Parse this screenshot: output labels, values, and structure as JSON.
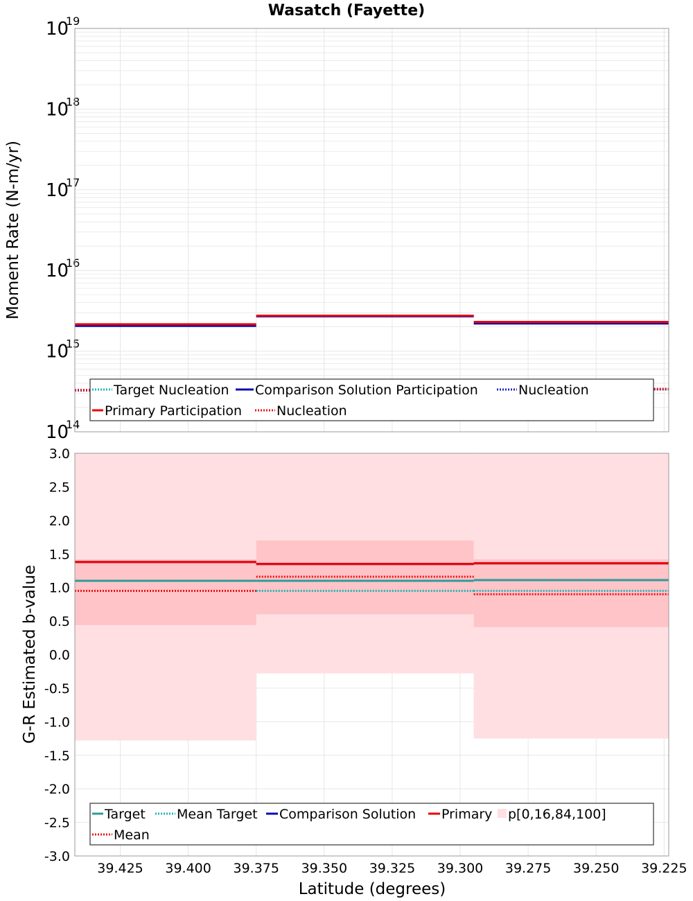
{
  "title": "Wasatch (Fayette)",
  "colors": {
    "teal": "#2a9d99",
    "teal_dotted": "#19b6b6",
    "blue": "#0b0bb0",
    "blue_dotted": "#2020c0",
    "red": "#ee0000",
    "red_dotted": "#ee1111",
    "band_outer": "#ffdfe2",
    "band_inner": "#ffc4c8",
    "grid": "#e6e6e6"
  },
  "chart_data": [
    {
      "type": "line",
      "panel": "top",
      "ylabel": "Moment Rate (N-m/yr)",
      "yscale": "log",
      "ylim": [
        100000000000000.0,
        1e+19
      ],
      "xlim": [
        39.4417,
        39.2233
      ],
      "x_reversed": true,
      "y_ticks": [
        {
          "base": "10",
          "exp": "14",
          "value": 100000000000000.0
        },
        {
          "base": "10",
          "exp": "15",
          "value": 1000000000000000.0
        },
        {
          "base": "10",
          "exp": "16",
          "value": 1e+16
        },
        {
          "base": "10",
          "exp": "17",
          "value": 1e+17
        },
        {
          "base": "10",
          "exp": "18",
          "value": 1e+18
        },
        {
          "base": "10",
          "exp": "19",
          "value": 1e+19
        }
      ],
      "segments": [
        [
          39.4417,
          39.375
        ],
        [
          39.375,
          39.295
        ],
        [
          39.295,
          39.2233
        ]
      ],
      "series": [
        {
          "key": "target_nuc",
          "legend": "Target Nucleation",
          "color": "#19b6b6",
          "style": "dotted",
          "values": [
            330000000000000.0,
            390000000000000.0,
            340000000000000.0
          ]
        },
        {
          "key": "comp_part",
          "legend": "Comparison Solution Participation",
          "color": "#0b0bb0",
          "style": "solid",
          "values": [
            2050000000000000.0,
            2700000000000000.0,
            2200000000000000.0
          ]
        },
        {
          "key": "comp_nuc",
          "legend": "Nucleation",
          "color": "#2020c0",
          "style": "dotted",
          "values": [
            325000000000000.0,
            385000000000000.0,
            335000000000000.0
          ]
        },
        {
          "key": "prim_part",
          "legend": "Primary Participation",
          "color": "#ee0000",
          "style": "solid",
          "values": [
            2150000000000000.0,
            2750000000000000.0,
            2300000000000000.0
          ]
        },
        {
          "key": "prim_nuc",
          "legend": "Nucleation",
          "color": "#ee1111",
          "style": "dotted",
          "values": [
            330000000000000.0,
            395000000000000.0,
            340000000000000.0
          ]
        }
      ],
      "legend_placement": "bottom",
      "grid": true
    },
    {
      "type": "line",
      "panel": "bottom",
      "ylabel": "G-R Estimated b-value",
      "xlabel": "Latitude (degrees)",
      "ylim": [
        -3.0,
        3.0
      ],
      "xlim": [
        39.4417,
        39.2233
      ],
      "x_reversed": true,
      "x_ticks": [
        "39.425",
        "39.400",
        "39.375",
        "39.350",
        "39.325",
        "39.300",
        "39.275",
        "39.250",
        "39.225"
      ],
      "y_ticks": [
        "3.0",
        "2.5",
        "2.0",
        "1.5",
        "1.0",
        "0.5",
        "0.0",
        "-0.5",
        "-1.0",
        "-1.5",
        "-2.0",
        "-2.5",
        "-3.0"
      ],
      "segments": [
        [
          39.4417,
          39.375
        ],
        [
          39.375,
          39.295
        ],
        [
          39.295,
          39.2233
        ]
      ],
      "bands": {
        "p0": [
          -1.28,
          -0.28,
          -1.25
        ],
        "p16": [
          0.44,
          0.6,
          0.41
        ],
        "p84": [
          1.42,
          1.7,
          1.42
        ],
        "p100": [
          3.0,
          3.0,
          3.0
        ]
      },
      "series": [
        {
          "key": "target",
          "legend": "Target",
          "color": "#2a9d99",
          "style": "solid",
          "values": [
            1.1,
            1.1,
            1.11
          ]
        },
        {
          "key": "mean_target",
          "legend": "Mean Target",
          "color": "#19b6b6",
          "style": "dotted",
          "values": [
            0.95,
            0.95,
            0.95
          ]
        },
        {
          "key": "comparison",
          "legend": "Comparison Solution",
          "color": "#0b0bb0",
          "style": "solid",
          "values": [
            1.38,
            1.35,
            1.36
          ]
        },
        {
          "key": "primary",
          "legend": "Primary",
          "color": "#ee0000",
          "style": "solid",
          "values": [
            1.38,
            1.35,
            1.36
          ]
        },
        {
          "key": "mean",
          "legend": "Mean",
          "color": "#ee1111",
          "style": "dotted",
          "values": [
            0.95,
            1.16,
            0.9
          ]
        }
      ],
      "band_legend": "p[0,16,84,100]",
      "legend_placement": "bottom",
      "grid": true
    }
  ]
}
